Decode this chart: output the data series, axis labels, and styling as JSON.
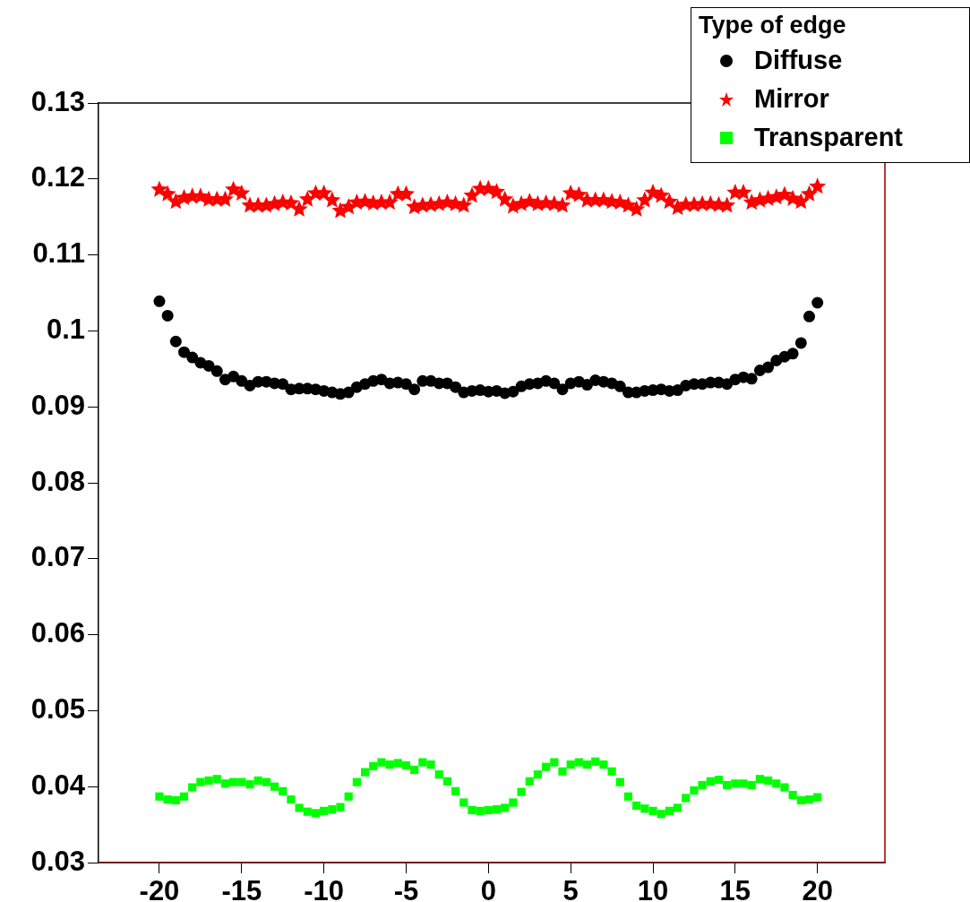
{
  "chart_data": {
    "type": "scatter",
    "legend_title": "Type of edge",
    "legend": "top right",
    "grid": false,
    "x": [
      -20,
      -19.5,
      -19,
      -18.5,
      -18,
      -17.5,
      -17,
      -16.5,
      -16,
      -15.5,
      -15,
      -14.5,
      -14,
      -13.5,
      -13,
      -12.5,
      -12,
      -11.5,
      -11,
      -10.5,
      -10,
      -9.5,
      -9,
      -8.5,
      -8,
      -7.5,
      -7,
      -6.5,
      -6,
      -5.5,
      -5,
      -4.5,
      -4,
      -3.5,
      -3,
      -2.5,
      -2,
      -1.5,
      -1,
      -0.5,
      0,
      0.5,
      1,
      1.5,
      2,
      2.5,
      3,
      3.5,
      4,
      4.5,
      5,
      5.5,
      6,
      6.5,
      7,
      7.5,
      8,
      8.5,
      9,
      9.5,
      10,
      10.5,
      11,
      11.5,
      12,
      12.5,
      13,
      13.5,
      14,
      14.5,
      15,
      15.5,
      16,
      16.5,
      17,
      17.5,
      18,
      18.5,
      19,
      19.5,
      20
    ],
    "xlim": [
      -23.7,
      24.1
    ],
    "xticks": [
      -20,
      -15,
      -10,
      -5,
      0,
      5,
      10,
      15,
      20
    ],
    "ylim": [
      0.03,
      0.13
    ],
    "yticks": [
      0.03,
      0.04,
      0.05,
      0.06,
      0.07,
      0.08,
      0.09,
      0.1,
      0.11,
      0.12,
      0.13
    ],
    "series": [
      {
        "name": "Diffuse",
        "color": "#000000",
        "marker": "circle",
        "values": [
          0.1039,
          0.102,
          0.0986,
          0.0972,
          0.0965,
          0.0958,
          0.0954,
          0.0947,
          0.0936,
          0.094,
          0.0934,
          0.0928,
          0.0933,
          0.0933,
          0.0931,
          0.093,
          0.0923,
          0.0924,
          0.0924,
          0.0923,
          0.0921,
          0.0919,
          0.0917,
          0.0919,
          0.0926,
          0.093,
          0.0934,
          0.0936,
          0.0931,
          0.0932,
          0.093,
          0.0923,
          0.0934,
          0.0934,
          0.0931,
          0.0931,
          0.0926,
          0.0919,
          0.0921,
          0.0922,
          0.092,
          0.0921,
          0.0918,
          0.092,
          0.0927,
          0.093,
          0.0931,
          0.0934,
          0.0931,
          0.0923,
          0.0931,
          0.0933,
          0.0929,
          0.0935,
          0.0933,
          0.0931,
          0.0927,
          0.0919,
          0.0919,
          0.0921,
          0.0922,
          0.0923,
          0.0921,
          0.0922,
          0.0928,
          0.093,
          0.093,
          0.0932,
          0.0932,
          0.093,
          0.0936,
          0.0939,
          0.0937,
          0.0948,
          0.0952,
          0.0961,
          0.0966,
          0.097,
          0.0984,
          0.1019,
          0.1037
        ]
      },
      {
        "name": "Mirror",
        "color": "#ff0000",
        "marker": "star",
        "values": [
          0.1186,
          0.118,
          0.117,
          0.1175,
          0.1177,
          0.1177,
          0.1173,
          0.1173,
          0.1173,
          0.1186,
          0.1181,
          0.1165,
          0.1165,
          0.1165,
          0.1167,
          0.1169,
          0.1168,
          0.116,
          0.1173,
          0.1181,
          0.1181,
          0.1172,
          0.1158,
          0.1163,
          0.1169,
          0.117,
          0.1168,
          0.1169,
          0.1169,
          0.118,
          0.118,
          0.1163,
          0.1165,
          0.1166,
          0.1167,
          0.1169,
          0.1167,
          0.1165,
          0.1178,
          0.1187,
          0.1187,
          0.1183,
          0.1173,
          0.1164,
          0.1167,
          0.117,
          0.1167,
          0.1168,
          0.1167,
          0.1165,
          0.1181,
          0.1179,
          0.1172,
          0.1172,
          0.1172,
          0.117,
          0.1169,
          0.1165,
          0.116,
          0.1172,
          0.1182,
          0.1178,
          0.117,
          0.1162,
          0.1166,
          0.1166,
          0.1167,
          0.1167,
          0.1166,
          0.1165,
          0.1182,
          0.1182,
          0.1169,
          0.1172,
          0.1174,
          0.1176,
          0.1179,
          0.1174,
          0.117,
          0.118,
          0.119
        ]
      },
      {
        "name": "Transparent",
        "color": "#00ff00",
        "marker": "square",
        "values": [
          0.0387,
          0.0383,
          0.0382,
          0.0387,
          0.0399,
          0.0406,
          0.0408,
          0.041,
          0.0404,
          0.0406,
          0.0406,
          0.0403,
          0.0408,
          0.0406,
          0.04,
          0.0394,
          0.0383,
          0.0372,
          0.0367,
          0.0365,
          0.0368,
          0.037,
          0.0373,
          0.0387,
          0.0406,
          0.0419,
          0.0427,
          0.0432,
          0.0429,
          0.0431,
          0.0428,
          0.0422,
          0.0432,
          0.0429,
          0.0416,
          0.0407,
          0.0394,
          0.0379,
          0.0369,
          0.0368,
          0.0369,
          0.037,
          0.0372,
          0.0379,
          0.0393,
          0.0407,
          0.0416,
          0.0426,
          0.0432,
          0.042,
          0.0429,
          0.0432,
          0.0429,
          0.0433,
          0.0429,
          0.042,
          0.0406,
          0.0387,
          0.0375,
          0.0371,
          0.0368,
          0.0364,
          0.0368,
          0.0372,
          0.0385,
          0.0395,
          0.0402,
          0.0407,
          0.0409,
          0.0402,
          0.0404,
          0.0404,
          0.0402,
          0.041,
          0.0408,
          0.0404,
          0.0399,
          0.0389,
          0.0382,
          0.0383,
          0.0386
        ]
      }
    ]
  }
}
